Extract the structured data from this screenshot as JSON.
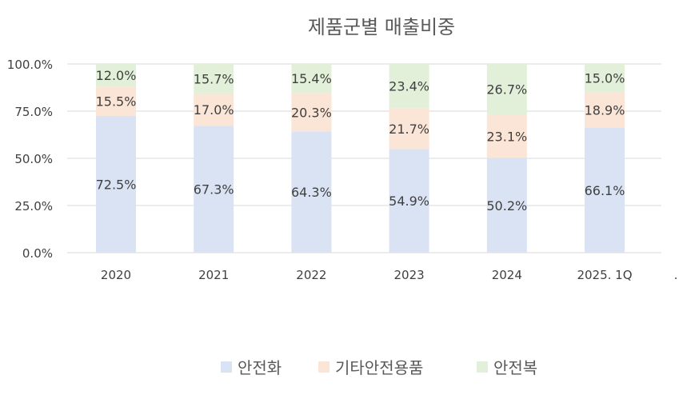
{
  "chart_data": {
    "type": "bar",
    "stacked": "percent",
    "title": "제품군별 매출비중",
    "categories": [
      "2020",
      "2021",
      "2022",
      "2023",
      "2024",
      "2025. 1Q"
    ],
    "series": [
      {
        "name": "안전화",
        "color": "#dae3f3",
        "values": [
          72.5,
          67.3,
          64.3,
          54.9,
          50.2,
          66.1
        ],
        "labels": [
          "72.5%",
          "67.3%",
          "64.3%",
          "54.9%",
          "50.2%",
          "66.1%"
        ]
      },
      {
        "name": "기타안전용품",
        "color": "#fbe5d6",
        "values": [
          15.5,
          17.0,
          20.3,
          21.7,
          23.1,
          18.9
        ],
        "labels": [
          "15.5%",
          "17.0%",
          "20.3%",
          "21.7%",
          "23.1%",
          "18.9%"
        ]
      },
      {
        "name": "안전복",
        "color": "#e2f0d9",
        "values": [
          12.0,
          15.7,
          15.4,
          23.4,
          26.7,
          15.0
        ],
        "labels": [
          "12.0%",
          "15.7%",
          "15.4%",
          "23.4%",
          "26.7%",
          "15.0%"
        ]
      }
    ],
    "ylim": [
      0,
      100
    ],
    "yticks": [
      0,
      25,
      50,
      75,
      100
    ],
    "ytick_labels": [
      "0.0%",
      "25.0%",
      "50.0%",
      "75.0%",
      "100.0%"
    ],
    "grid": true,
    "legend_position": "bottom",
    "trailing_tick_label": "."
  }
}
